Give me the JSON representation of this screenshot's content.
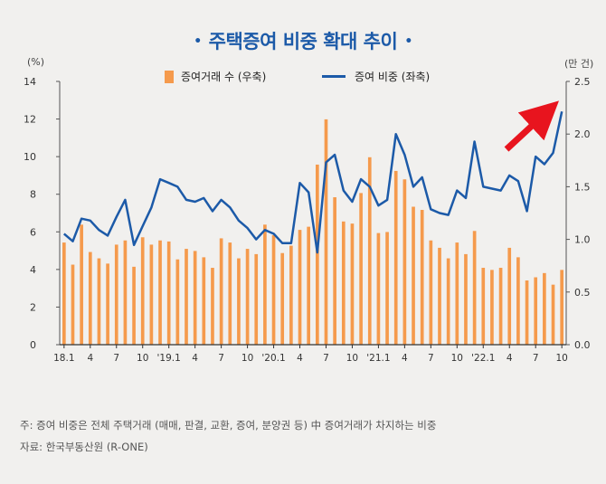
{
  "header": {
    "title": "주택증여 비중 확대 추이",
    "bullet": "•"
  },
  "units": {
    "left": "(%)",
    "right": "(만 건)"
  },
  "legend": {
    "bars": "증여거래 수 (우축)",
    "line": "증여 비중 (좌축)"
  },
  "notes": {
    "note": "주: 증여 비중은 전체 주택거래 (매매, 판결, 교환, 증여, 분양권 등) 中 증여거래가 차지하는 비중",
    "source": "자료: 한국부동산원 (R-ONE)"
  },
  "colors": {
    "bars": "#f59a4c",
    "line": "#1c5aa8",
    "arrow": "#e8141e"
  },
  "chart_data": {
    "type": "bar+line",
    "x_tick_labels": [
      "18.1",
      "4",
      "7",
      "10",
      "'19.1",
      "4",
      "7",
      "10",
      "'20.1",
      "4",
      "7",
      "10",
      "'21.1",
      "4",
      "7",
      "10",
      "'22.1",
      "4",
      "7",
      "10"
    ],
    "left_axis": {
      "ylim": [
        0,
        14
      ],
      "ticks": [
        "0",
        "2",
        "4",
        "6",
        "8",
        "10",
        "12",
        "14"
      ]
    },
    "right_axis": {
      "ylim": [
        0,
        2.5
      ],
      "ticks": [
        "0.0",
        "0.5",
        "1.0",
        "1.5",
        "2.0",
        "2.5"
      ]
    },
    "series": [
      {
        "name": "증여거래 수 (우축)",
        "axis": "right",
        "type": "bar",
        "values": [
          0.97,
          0.76,
          1.14,
          0.88,
          0.82,
          0.77,
          0.95,
          0.99,
          0.74,
          1.02,
          0.95,
          0.99,
          0.98,
          0.81,
          0.91,
          0.89,
          0.83,
          0.73,
          1.01,
          0.97,
          0.82,
          0.91,
          0.86,
          1.14,
          1.04,
          0.87,
          0.94,
          1.09,
          1.12,
          1.71,
          2.14,
          1.4,
          1.17,
          1.15,
          1.44,
          1.78,
          1.06,
          1.07,
          1.65,
          1.57,
          1.31,
          1.28,
          0.99,
          0.92,
          0.82,
          0.97,
          0.86,
          1.08,
          0.73,
          0.71,
          0.73,
          0.92,
          0.83,
          0.61,
          0.64,
          0.68,
          0.57,
          0.71
        ]
      },
      {
        "name": "증여 비중 (좌축)",
        "axis": "left",
        "type": "line",
        "values": [
          5.9,
          5.5,
          6.7,
          6.6,
          6.1,
          5.8,
          6.8,
          7.7,
          5.3,
          6.3,
          7.3,
          8.8,
          8.6,
          8.4,
          7.7,
          7.6,
          7.8,
          7.1,
          7.7,
          7.3,
          6.6,
          6.2,
          5.6,
          6.1,
          5.9,
          5.4,
          5.4,
          8.6,
          8.1,
          4.9,
          9.7,
          10.1,
          8.2,
          7.6,
          8.8,
          8.4,
          7.4,
          7.7,
          11.2,
          10.1,
          8.4,
          8.9,
          7.2,
          7.0,
          6.9,
          8.2,
          7.8,
          10.8,
          8.4,
          8.3,
          8.2,
          9.0,
          8.7,
          7.1,
          10.0,
          9.6,
          10.2,
          12.4
        ]
      }
    ]
  }
}
